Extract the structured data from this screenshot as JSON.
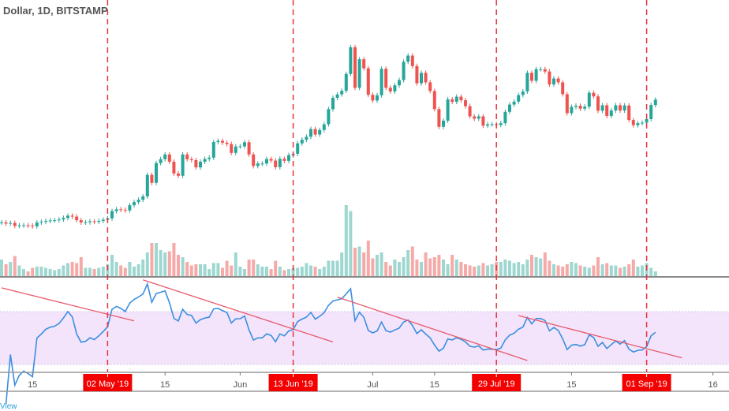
{
  "header": {
    "title": "Dollar, 1D, BITSTAMP"
  },
  "brand": "View",
  "colors": {
    "up": "#26a69a",
    "down": "#ef5350",
    "vol_up": "#9ed7d0",
    "vol_down": "#f5aaa8",
    "rsi": "#3a8fe0",
    "rsi_band": "#f3e4fb",
    "trendline": "#e8596b",
    "event": "#e8323c",
    "event_label_bg": "#f40000"
  },
  "chart_data": [
    {
      "type": "candlestick",
      "title": "Dollar, 1D, BITSTAMP",
      "x_start": "2019-04-08",
      "x_interval": "1D",
      "close": [
        5200,
        5150,
        5180,
        5050,
        5070,
        5080,
        5060,
        5030,
        5200,
        5230,
        5270,
        5290,
        5300,
        5330,
        5400,
        5500,
        5460,
        5300,
        5200,
        5210,
        5250,
        5230,
        5270,
        5320,
        5380,
        5700,
        5780,
        5760,
        5730,
        5960,
        6100,
        6200,
        6350,
        7300,
        6950,
        7820,
        7990,
        8200,
        7880,
        7360,
        7260,
        8200,
        7990,
        7950,
        7630,
        7880,
        8000,
        8060,
        8750,
        8800,
        8720,
        8660,
        8270,
        8550,
        8560,
        8740,
        8200,
        7690,
        7800,
        7800,
        8000,
        7930,
        7640,
        8010,
        7920,
        8170,
        8230,
        8690,
        8850,
        8980,
        9320,
        9080,
        9280,
        9530,
        10200,
        10700,
        10850,
        11010,
        11750,
        12930,
        11140,
        12400,
        12000,
        10830,
        10580,
        10810,
        11980,
        11140,
        10980,
        11250,
        11480,
        12290,
        12560,
        12100,
        11340,
        11800,
        11380,
        11000,
        10200,
        9420,
        9690,
        10630,
        10520,
        10750,
        10590,
        10330,
        9880,
        9780,
        9880,
        9470,
        9530,
        9530,
        9500,
        9580,
        10080,
        10400,
        10530,
        10820,
        10980,
        11800,
        11450,
        11960,
        11960,
        11860,
        11290,
        11550,
        11380,
        10860,
        10020,
        10300,
        10350,
        10220,
        10310,
        10920,
        10760,
        10130,
        10370,
        9900,
        10140,
        10370,
        10140,
        10360,
        9720,
        9490,
        9580,
        9600,
        9760,
        10380,
        10620
      ],
      "volume": [
        14,
        10,
        12,
        17,
        9,
        6,
        4,
        7,
        8,
        8,
        7,
        6,
        5,
        6,
        9,
        11,
        12,
        11,
        16,
        7,
        7,
        6,
        7,
        8,
        10,
        18,
        12,
        9,
        7,
        12,
        8,
        10,
        14,
        20,
        28,
        28,
        22,
        20,
        21,
        28,
        18,
        16,
        12,
        9,
        10,
        10,
        10,
        6,
        11,
        11,
        7,
        13,
        9,
        20,
        8,
        6,
        14,
        14,
        10,
        8,
        8,
        6,
        13,
        8,
        5,
        6,
        7,
        7,
        8,
        11,
        9,
        8,
        6,
        8,
        13,
        13,
        13,
        20,
        60,
        55,
        24,
        25,
        20,
        30,
        15,
        18,
        20,
        12,
        9,
        14,
        12,
        16,
        22,
        25,
        14,
        12,
        20,
        15,
        16,
        18,
        14,
        10,
        18,
        14,
        12,
        10,
        9,
        8,
        9,
        11,
        9,
        10,
        12,
        12,
        14,
        13,
        11,
        12,
        10,
        14,
        18,
        16,
        15,
        20,
        13,
        10,
        9,
        8,
        10,
        12,
        11,
        9,
        8,
        7,
        9,
        16,
        10,
        11,
        9,
        9,
        7,
        8,
        10,
        14,
        8,
        9,
        11,
        7,
        4
      ]
    },
    {
      "type": "line",
      "indicator": "RSI",
      "band": [
        30,
        70
      ],
      "trendlines": [
        {
          "from": [
            "2019-04-08",
            88
          ],
          "to": [
            "2019-05-08",
            63
          ]
        },
        {
          "from": [
            "2019-05-10",
            94
          ],
          "to": [
            "2019-06-22",
            47
          ]
        },
        {
          "from": [
            "2019-06-23",
            81
          ],
          "to": [
            "2019-08-05",
            33
          ]
        },
        {
          "from": [
            "2019-08-03",
            67
          ],
          "to": [
            "2019-09-09",
            35
          ]
        }
      ]
    }
  ],
  "events": [
    {
      "date": "2019-05-02",
      "label": "02 May '19"
    },
    {
      "date": "2019-06-13",
      "label": "13 Jun '19"
    },
    {
      "date": "2019-07-29",
      "label": "29 Jul '19"
    },
    {
      "date": "2019-09-01",
      "label": "01 Sep '19"
    }
  ],
  "x_axis": {
    "ticks": [
      {
        "date": "2019-04-15",
        "label": "15"
      },
      {
        "date": "2019-05-15",
        "label": "15"
      },
      {
        "date": "2019-06-01",
        "label": "Jun"
      },
      {
        "date": "2019-07-01",
        "label": "Jul"
      },
      {
        "date": "2019-07-15",
        "label": "15"
      },
      {
        "date": "2019-08-15",
        "label": "15"
      },
      {
        "date": "2019-09-16",
        "label": "16"
      }
    ]
  }
}
